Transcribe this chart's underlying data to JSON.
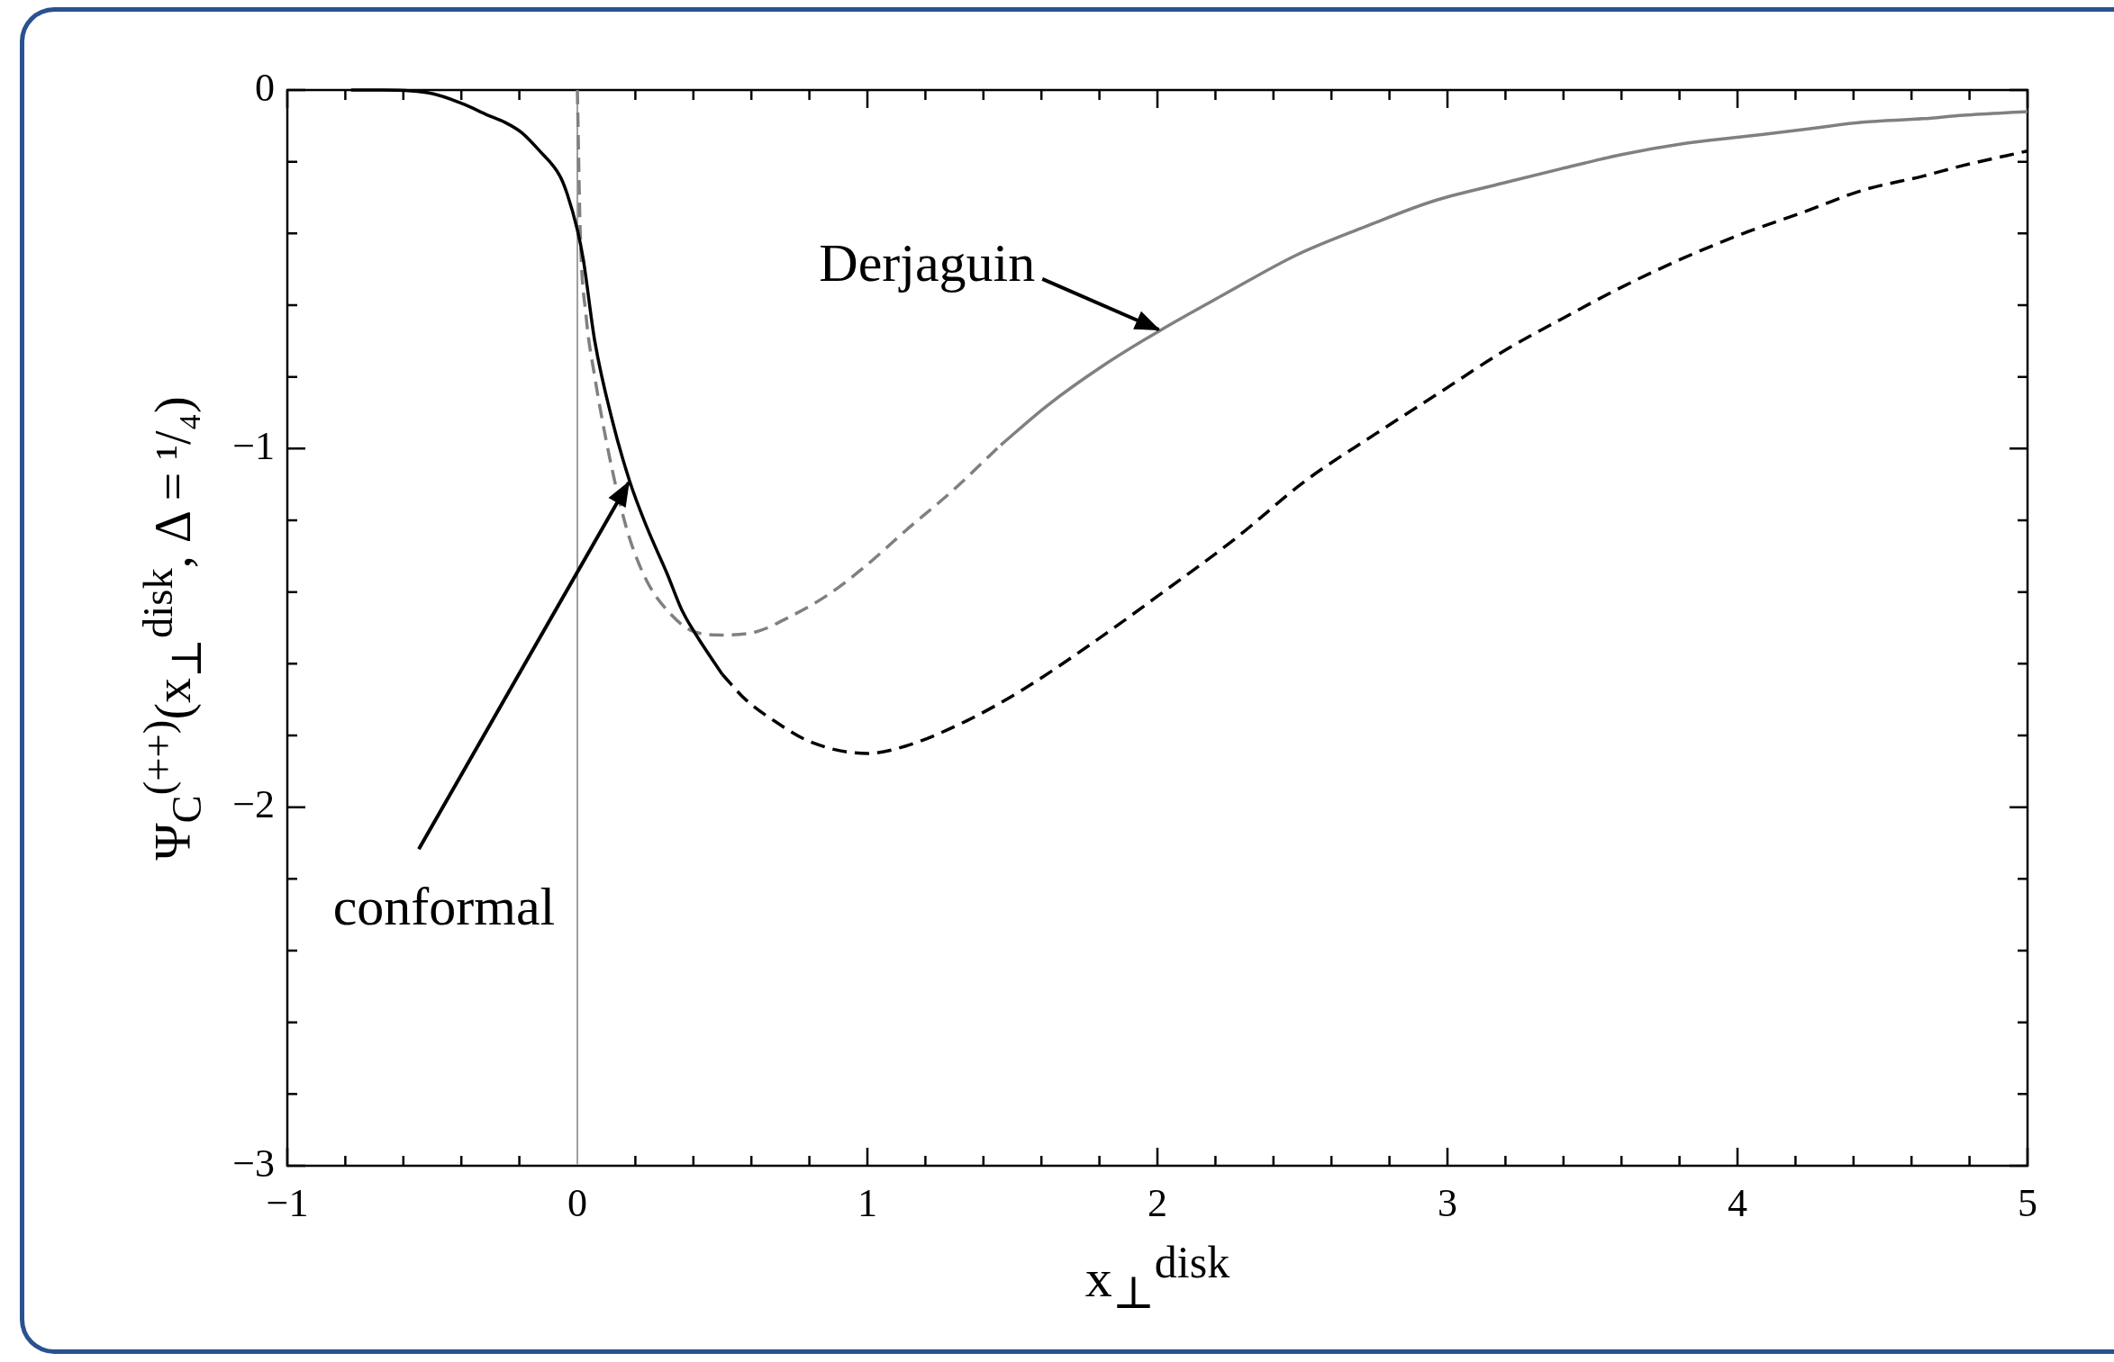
{
  "chart_data": {
    "type": "line",
    "xlabel": "x$_{⊥}$$^{disk}$",
    "ylabel": "Ψ$_{C}$$^{(++)}$(x$_{⊥}$$^{disk}$, Δ = ¹/₄)",
    "xlim": [
      -1,
      5
    ],
    "ylim": [
      -3,
      0
    ],
    "xticks": [
      {
        "value": -1,
        "label": "−1"
      },
      {
        "value": -0.8,
        "label": null
      },
      {
        "value": -0.6,
        "label": null
      },
      {
        "value": -0.4,
        "label": null
      },
      {
        "value": -0.2,
        "label": null
      },
      {
        "value": 0,
        "label": "0"
      },
      {
        "value": 0.2,
        "label": null
      },
      {
        "value": 0.4,
        "label": null
      },
      {
        "value": 0.6,
        "label": null
      },
      {
        "value": 0.8,
        "label": null
      },
      {
        "value": 1,
        "label": "1"
      },
      {
        "value": 1.2,
        "label": null
      },
      {
        "value": 1.4,
        "label": null
      },
      {
        "value": 1.6,
        "label": null
      },
      {
        "value": 1.8,
        "label": null
      },
      {
        "value": 2,
        "label": "2"
      },
      {
        "value": 2.2,
        "label": null
      },
      {
        "value": 2.4,
        "label": null
      },
      {
        "value": 2.6,
        "label": null
      },
      {
        "value": 2.8,
        "label": null
      },
      {
        "value": 3,
        "label": "3"
      },
      {
        "value": 3.2,
        "label": null
      },
      {
        "value": 3.4,
        "label": null
      },
      {
        "value": 3.6,
        "label": null
      },
      {
        "value": 3.8,
        "label": null
      },
      {
        "value": 4,
        "label": "4"
      },
      {
        "value": 4.2,
        "label": null
      },
      {
        "value": 4.4,
        "label": null
      },
      {
        "value": 4.6,
        "label": null
      },
      {
        "value": 4.8,
        "label": null
      },
      {
        "value": 5,
        "label": "5"
      }
    ],
    "yticks": [
      {
        "value": -3,
        "label": "−3"
      },
      {
        "value": -2.8,
        "label": null
      },
      {
        "value": -2.6,
        "label": null
      },
      {
        "value": -2.4,
        "label": null
      },
      {
        "value": -2.2,
        "label": null
      },
      {
        "value": -2,
        "label": "−2"
      },
      {
        "value": -1.8,
        "label": null
      },
      {
        "value": -1.6,
        "label": null
      },
      {
        "value": -1.4,
        "label": null
      },
      {
        "value": -1.2,
        "label": null
      },
      {
        "value": -1,
        "label": "−1"
      },
      {
        "value": -0.8,
        "label": null
      },
      {
        "value": -0.6,
        "label": null
      },
      {
        "value": -0.4,
        "label": null
      },
      {
        "value": -0.2,
        "label": null
      },
      {
        "value": 0,
        "label": "0"
      }
    ],
    "grid": false,
    "marker": "none",
    "series": [
      {
        "color": "#000000",
        "line_style": "solid",
        "x": [
          -0.78,
          -0.67,
          -0.5,
          -0.39,
          -0.31,
          -0.25,
          -0.19,
          -0.13,
          -0.06,
          -0.035,
          0,
          0.02,
          0.06,
          0.12,
          0.18,
          0.24,
          0.31,
          0.36,
          0.41,
          0.5
        ],
        "values": [
          0,
          0,
          -0.01,
          -0.04,
          -0.07,
          -0.09,
          -0.12,
          -0.17,
          -0.24,
          -0.29,
          -0.39,
          -0.47,
          -0.7,
          -0.92,
          -1.09,
          -1.22,
          -1.35,
          -1.45,
          -1.52,
          -1.63
        ]
      },
      {
        "color": "#000000",
        "line_style": "dashed",
        "x": [
          0.5,
          0.58,
          0.68,
          0.81,
          1,
          1.13,
          1.34,
          1.54,
          1.78,
          2.02,
          2.27,
          2.51,
          2.75,
          2.98,
          3.19,
          3.39,
          3.6,
          3.81,
          4.02,
          4.23,
          4.43,
          4.64,
          4.78,
          5
        ],
        "values": [
          -1.63,
          -1.7,
          -1.76,
          -1.82,
          -1.85,
          -1.83,
          -1.76,
          -1.67,
          -1.54,
          -1.4,
          -1.25,
          -1.09,
          -0.96,
          -0.84,
          -0.73,
          -0.64,
          -0.55,
          -0.47,
          -0.4,
          -0.34,
          -0.28,
          -0.24,
          -0.21,
          -0.17
        ]
      },
      {
        "color": "#808080",
        "line_style": "dashed",
        "x": [
          0,
          0.01,
          0.03,
          0.06,
          0.1,
          0.14,
          0.18,
          0.24,
          0.32,
          0.4,
          0.5,
          0.62,
          0.73,
          0.86,
          0.99,
          1.13,
          1.29,
          1.46
        ],
        "values": [
          0,
          -0.4,
          -0.63,
          -0.8,
          -0.98,
          -1.13,
          -1.25,
          -1.37,
          -1.46,
          -1.51,
          -1.52,
          -1.51,
          -1.47,
          -1.41,
          -1.33,
          -1.23,
          -1.12,
          -0.99
        ]
      },
      {
        "color": "#808080",
        "line_style": "solid",
        "x": [
          1.46,
          1.62,
          1.81,
          2.01,
          2.23,
          2.48,
          2.72,
          2.95,
          3.19,
          3.39,
          3.6,
          3.81,
          4.02,
          4.23,
          4.43,
          4.64,
          4.78,
          5
        ],
        "values": [
          -0.99,
          -0.88,
          -0.77,
          -0.67,
          -0.57,
          -0.46,
          -0.38,
          -0.31,
          -0.26,
          -0.22,
          -0.18,
          -0.15,
          -0.13,
          -0.11,
          -0.09,
          -0.08,
          -0.07,
          -0.06
        ]
      }
    ],
    "ref_lines": [
      {
        "axis": "x",
        "value": 0,
        "color": "#a0a0a0"
      }
    ],
    "annotations": [
      {
        "text": "Derjaguin",
        "x": 2.01,
        "y": -0.67
      },
      {
        "text": "conformal",
        "x": 0.18,
        "y": -1.09
      }
    ]
  }
}
